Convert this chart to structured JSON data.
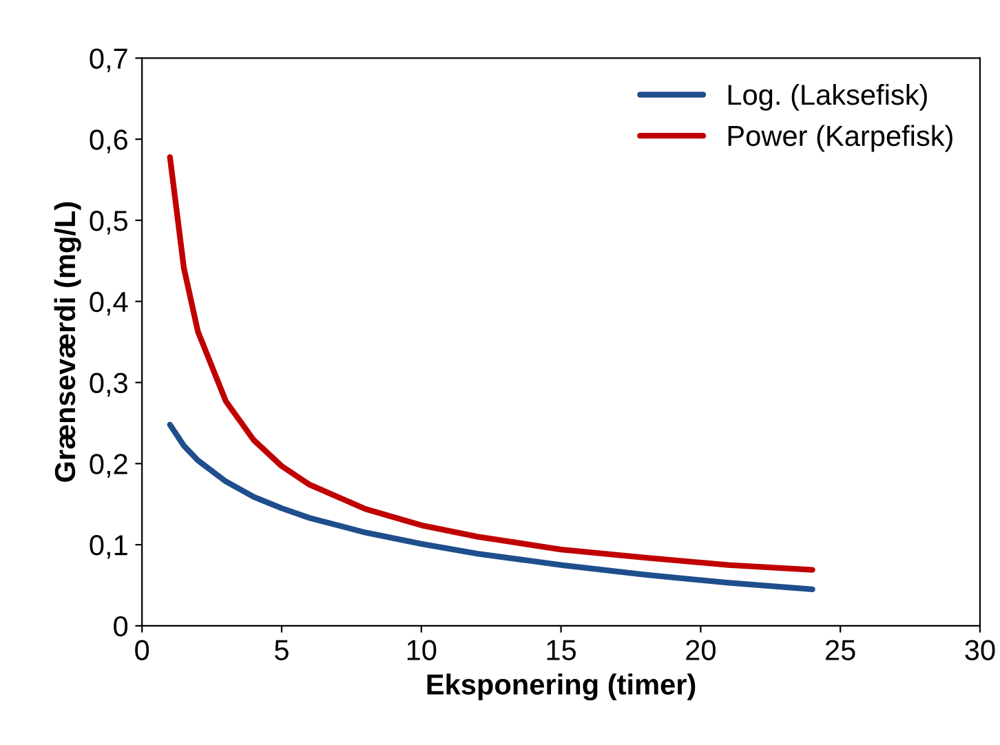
{
  "chart_data": {
    "type": "line",
    "xlabel": "Eksponering (timer)",
    "ylabel": "Grænseværdi (mg/L)",
    "x": [
      1,
      1.5,
      2,
      3,
      4,
      5,
      6,
      8,
      10,
      12,
      15,
      18,
      21,
      24
    ],
    "series": [
      {
        "name": "Log. (Laksefisk)",
        "color": "#1f4e8c",
        "values": [
          0.248,
          0.222,
          0.204,
          0.178,
          0.159,
          0.145,
          0.133,
          0.115,
          0.101,
          0.089,
          0.075,
          0.063,
          0.053,
          0.045
        ]
      },
      {
        "name": "Power (Karpefisk)",
        "color": "#c00000",
        "values": [
          0.578,
          0.441,
          0.363,
          0.277,
          0.229,
          0.197,
          0.174,
          0.144,
          0.124,
          0.11,
          0.094,
          0.084,
          0.075,
          0.069
        ]
      }
    ],
    "xlim": [
      0,
      30
    ],
    "xticks": [
      0,
      5,
      10,
      15,
      20,
      25,
      30
    ],
    "ylim": [
      0,
      0.7
    ],
    "yticks": [
      0,
      {
        "value": 0.1,
        "label": "0,1"
      },
      {
        "value": 0.2,
        "label": "0,2"
      },
      {
        "value": 0.3,
        "label": "0,3"
      },
      {
        "value": 0.4,
        "label": "0,4"
      },
      {
        "value": 0.5,
        "label": "0,5"
      },
      {
        "value": 0.6,
        "label": "0,6"
      },
      {
        "value": 0.7,
        "label": "0,7"
      }
    ],
    "grid": false,
    "legend": "top right",
    "marker": "none",
    "line_style": "solid"
  }
}
